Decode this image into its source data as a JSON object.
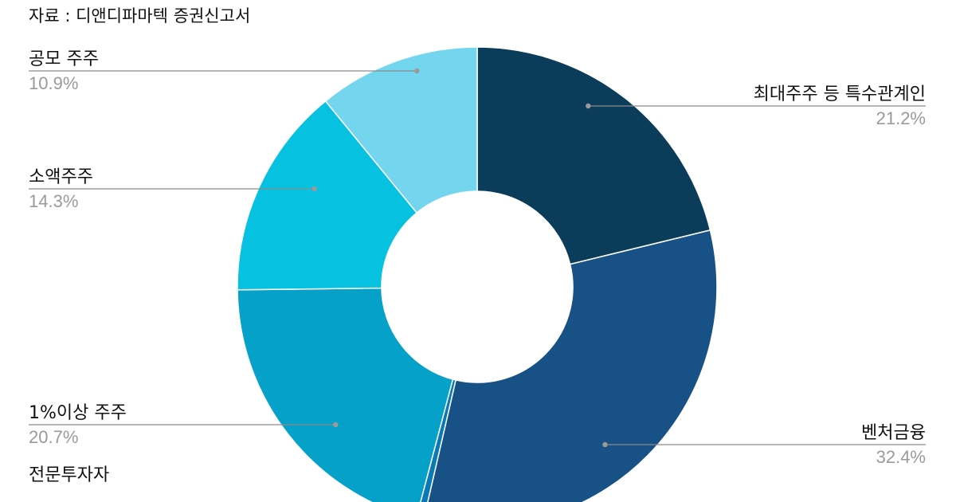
{
  "source_note": "자료 : 디앤디파마텍 증권신고서",
  "chart_data": {
    "type": "pie",
    "style": "donut",
    "categories": [
      "최대주주 등 특수관계인",
      "벤처금융",
      "전문투자자",
      "1%이상 주주",
      "소액주주",
      "공모 주주"
    ],
    "values": [
      21.2,
      32.4,
      0.5,
      20.7,
      14.3,
      10.9
    ],
    "value_labels": [
      "21.2%",
      "32.4%",
      "",
      "20.7%",
      "14.3%",
      "10.9%"
    ],
    "colors": [
      "#0b3d5b",
      "#185185",
      "#0a79b8",
      "#05a1c8",
      "#06c2e0",
      "#74d6ee"
    ],
    "start_angle_deg": 0,
    "direction": "clockwise"
  }
}
